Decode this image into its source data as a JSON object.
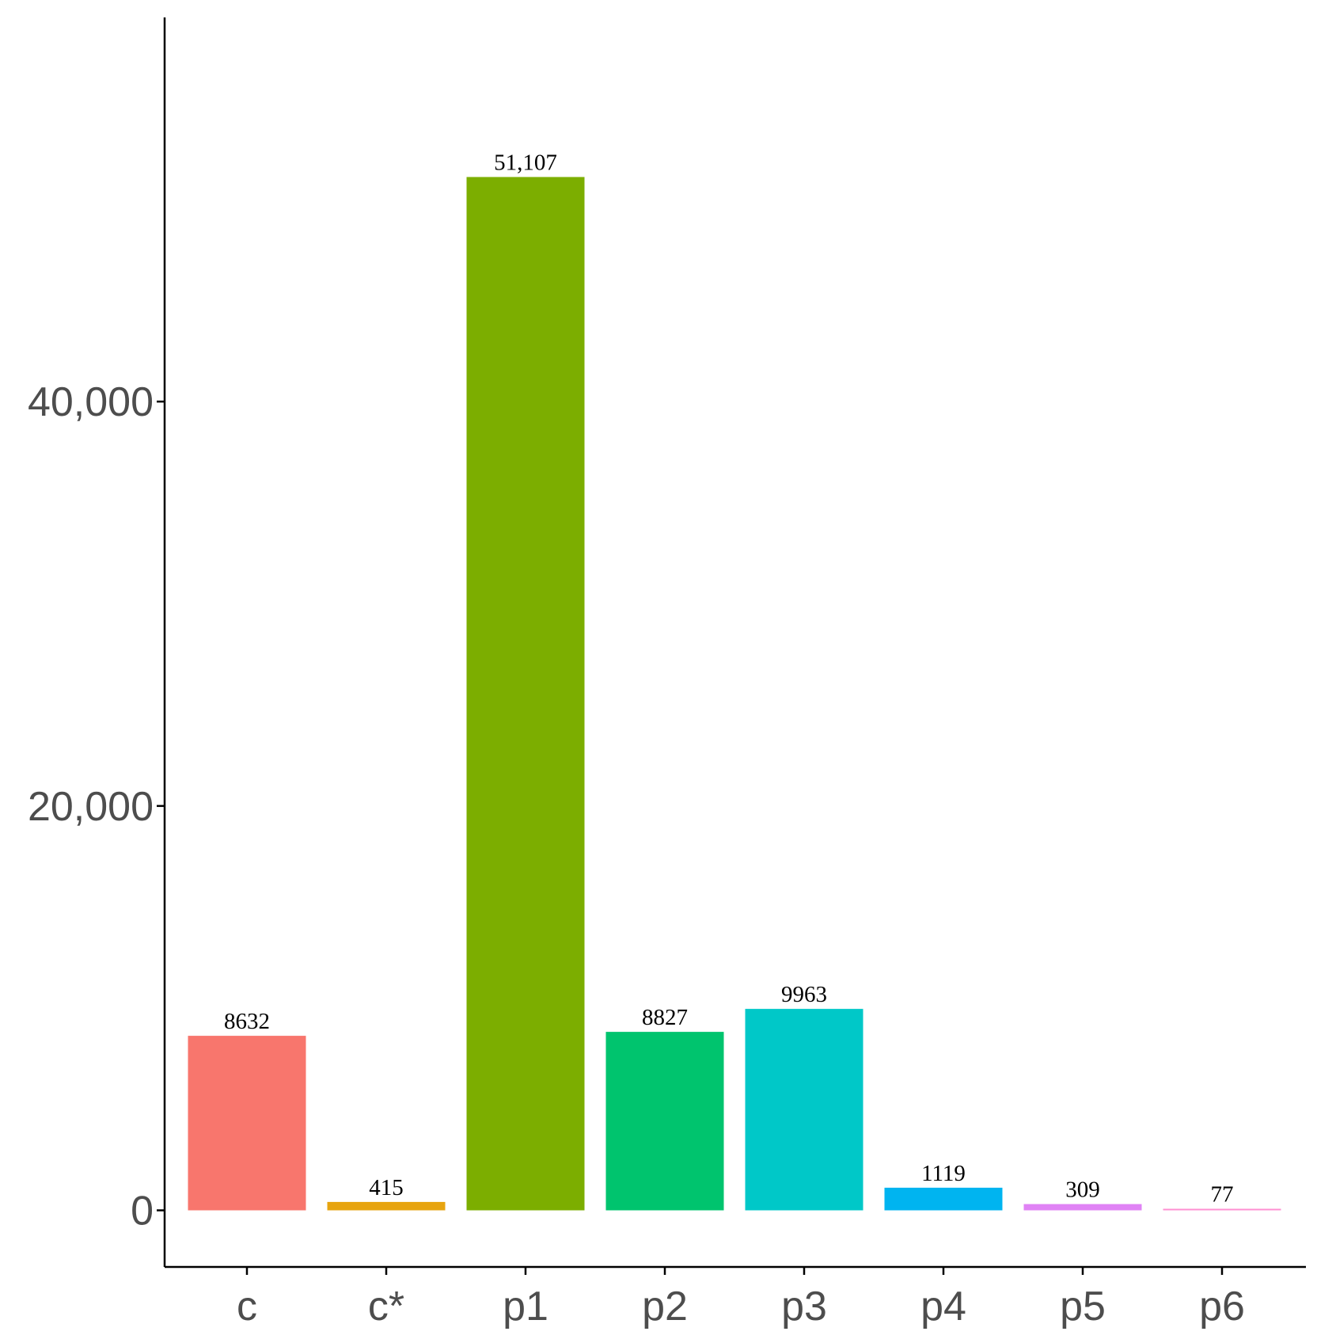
{
  "chart_data": {
    "type": "bar",
    "title": "",
    "xlabel": "",
    "ylabel": "",
    "categories": [
      "c",
      "c*",
      "p1",
      "p2",
      "p3",
      "p4",
      "p5",
      "p6"
    ],
    "values": [
      8632,
      415,
      51107,
      8827,
      9963,
      1119,
      309,
      77
    ],
    "value_labels": [
      "8632",
      "415",
      "51,107",
      "8827",
      "9963",
      "1119",
      "309",
      "77"
    ],
    "colors": [
      "#F8766D",
      "#E7A40F",
      "#7CAE00",
      "#00C46E",
      "#00C8C8",
      "#00B4F0",
      "#E083F5",
      "#FF8FD2"
    ],
    "yticks": [
      0,
      20000,
      40000
    ],
    "ytick_labels": [
      "0",
      "20,000",
      "40,000"
    ],
    "ylim": [
      -2800,
      59000
    ],
    "grid": false,
    "legend": "none"
  }
}
